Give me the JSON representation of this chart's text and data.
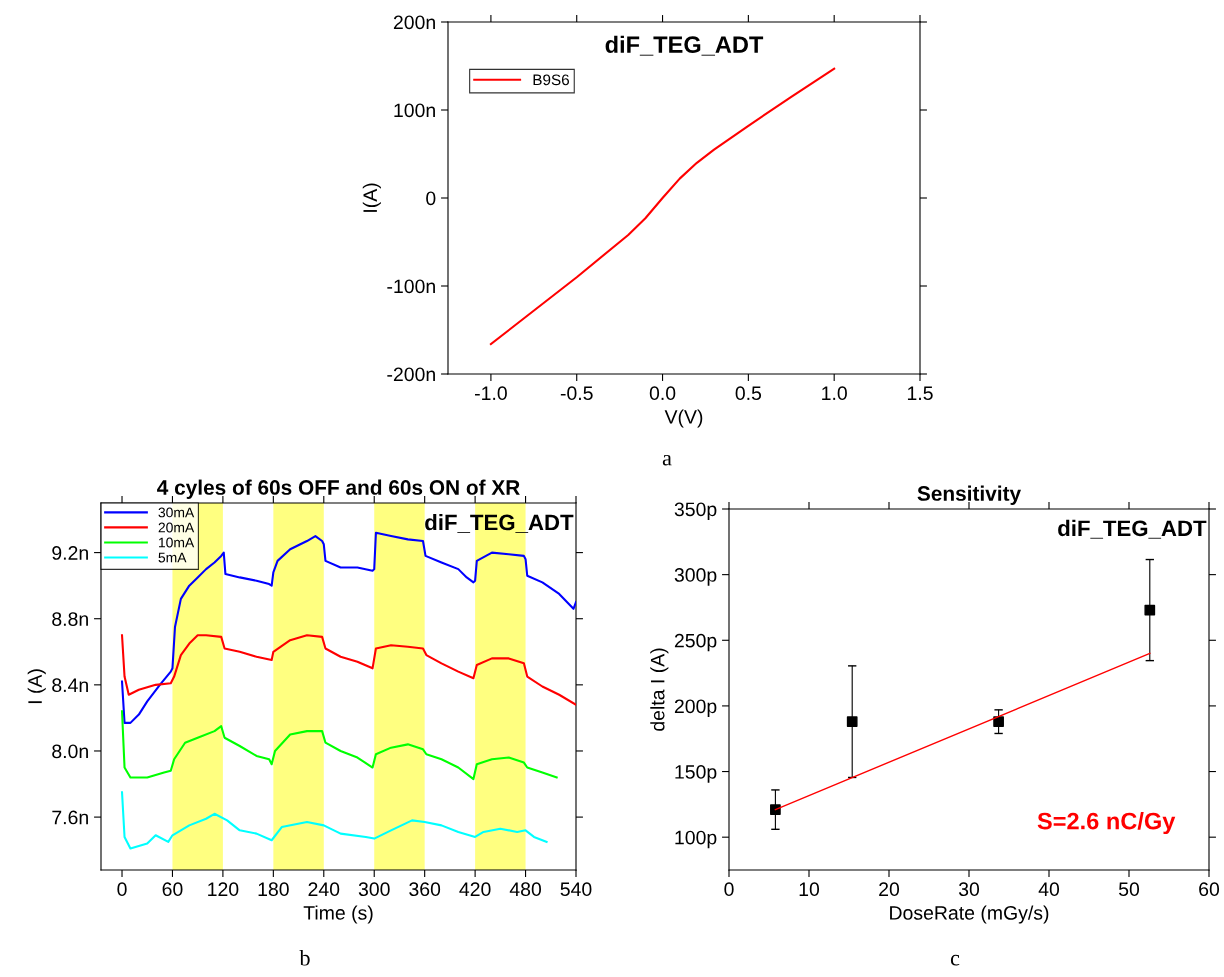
{
  "chart_data": [
    {
      "type": "line",
      "title": "diF_TEG_ADT",
      "xlabel": "V(V)",
      "ylabel": "I(A)",
      "annotations": [
        "a"
      ],
      "legend": "top left",
      "x": [
        -1.0,
        -0.5,
        -0.2,
        -0.1,
        0.0,
        0.1,
        0.2,
        0.3,
        0.5,
        0.75,
        1.0
      ],
      "series": [
        {
          "name": "B9S6",
          "color": "#ff0000",
          "values": [
            -166,
            -90,
            -42,
            -23,
            0,
            22,
            40,
            55,
            82,
            115,
            147
          ]
        }
      ],
      "xlim": [
        -1.25,
        1.5
      ],
      "xticks": [
        {
          "value": -1.0,
          "label": "-1.0"
        },
        {
          "value": -0.5,
          "label": "-0.5"
        },
        {
          "value": 0.0,
          "label": "0.0"
        },
        {
          "value": 0.5,
          "label": "0.5"
        },
        {
          "value": 1.0,
          "label": "1.0"
        },
        {
          "value": 1.5,
          "label": "1.5"
        }
      ],
      "ylim": [
        -200,
        200
      ],
      "yticks": [
        {
          "value": -200,
          "label": "-200n"
        },
        {
          "value": -100,
          "label": "-100n"
        },
        {
          "value": 0,
          "label": "0"
        },
        {
          "value": 100,
          "label": "100n"
        },
        {
          "value": 200,
          "label": "200n"
        }
      ]
    },
    {
      "type": "line",
      "title": "4 cyles of 60s OFF and 60s ON of XR",
      "subtitle": "diF_TEG_ADT",
      "xlabel": "Time (s)",
      "ylabel": "I (A)",
      "annotations": [
        "b"
      ],
      "legend": "top left",
      "series": [
        {
          "name": "30mA",
          "color": "#0000ff",
          "x": [
            0,
            3,
            10,
            20,
            30,
            45,
            58,
            60,
            63,
            70,
            80,
            90,
            100,
            110,
            118,
            121,
            123,
            140,
            160,
            175,
            178,
            180,
            185,
            200,
            220,
            230,
            238,
            240,
            242,
            260,
            280,
            298,
            300,
            302,
            320,
            340,
            358,
            361,
            380,
            400,
            410,
            418,
            420,
            422,
            440,
            460,
            478,
            480,
            482,
            500,
            520,
            537,
            540
          ],
          "values": [
            8.42,
            8.17,
            8.17,
            8.22,
            8.3,
            8.4,
            8.48,
            8.5,
            8.75,
            8.92,
            9.0,
            9.05,
            9.1,
            9.14,
            9.18,
            9.2,
            9.07,
            9.05,
            9.03,
            9.01,
            9.0,
            9.08,
            9.15,
            9.22,
            9.27,
            9.3,
            9.27,
            9.25,
            9.15,
            9.11,
            9.11,
            9.09,
            9.1,
            9.32,
            9.3,
            9.28,
            9.27,
            9.18,
            9.14,
            9.1,
            9.05,
            9.02,
            9.03,
            9.15,
            9.2,
            9.19,
            9.18,
            9.16,
            9.06,
            9.02,
            8.95,
            8.86,
            8.9
          ]
        },
        {
          "name": "20mA",
          "color": "#ff0000",
          "x": [
            0,
            3,
            8,
            20,
            40,
            58,
            62,
            70,
            80,
            90,
            100,
            118,
            122,
            140,
            160,
            178,
            180,
            200,
            220,
            238,
            242,
            260,
            280,
            298,
            302,
            320,
            340,
            358,
            362,
            380,
            400,
            418,
            422,
            440,
            460,
            478,
            482,
            500,
            520,
            540
          ],
          "values": [
            8.7,
            8.45,
            8.34,
            8.37,
            8.4,
            8.41,
            8.45,
            8.58,
            8.65,
            8.7,
            8.7,
            8.69,
            8.62,
            8.6,
            8.57,
            8.55,
            8.6,
            8.67,
            8.7,
            8.69,
            8.62,
            8.57,
            8.54,
            8.5,
            8.62,
            8.64,
            8.63,
            8.62,
            8.58,
            8.53,
            8.48,
            8.44,
            8.52,
            8.56,
            8.56,
            8.53,
            8.45,
            8.39,
            8.34,
            8.28
          ]
        },
        {
          "name": "10mA",
          "color": "#00ff00",
          "x": [
            0,
            3,
            10,
            30,
            50,
            58,
            62,
            75,
            90,
            110,
            118,
            122,
            140,
            160,
            175,
            178,
            182,
            200,
            220,
            238,
            242,
            260,
            280,
            298,
            302,
            320,
            340,
            358,
            362,
            380,
            400,
            418,
            422,
            440,
            460,
            478,
            482,
            500,
            517
          ],
          "values": [
            8.24,
            7.9,
            7.84,
            7.84,
            7.87,
            7.88,
            7.95,
            8.05,
            8.08,
            8.12,
            8.15,
            8.08,
            8.03,
            7.97,
            7.95,
            7.92,
            8.0,
            8.1,
            8.12,
            8.12,
            8.05,
            8.0,
            7.96,
            7.9,
            7.98,
            8.02,
            8.04,
            8.01,
            7.98,
            7.95,
            7.9,
            7.83,
            7.92,
            7.95,
            7.96,
            7.93,
            7.9,
            7.87,
            7.84
          ]
        },
        {
          "name": "5mA",
          "color": "#00ffff",
          "x": [
            0,
            3,
            10,
            30,
            40,
            55,
            60,
            80,
            100,
            110,
            125,
            140,
            160,
            178,
            190,
            220,
            240,
            260,
            290,
            300,
            320,
            345,
            360,
            380,
            400,
            420,
            430,
            450,
            470,
            480,
            490,
            505
          ],
          "values": [
            7.75,
            7.48,
            7.41,
            7.44,
            7.49,
            7.45,
            7.49,
            7.55,
            7.59,
            7.62,
            7.58,
            7.52,
            7.5,
            7.46,
            7.54,
            7.57,
            7.55,
            7.5,
            7.48,
            7.47,
            7.52,
            7.58,
            7.57,
            7.55,
            7.51,
            7.48,
            7.51,
            7.53,
            7.51,
            7.52,
            7.48,
            7.45
          ]
        }
      ],
      "bands": [
        {
          "axis": "x",
          "from": 60,
          "to": 120,
          "label": null,
          "color": "#ffff80"
        },
        {
          "axis": "x",
          "from": 180,
          "to": 240,
          "label": null,
          "color": "#ffff80"
        },
        {
          "axis": "x",
          "from": 300,
          "to": 360,
          "label": null,
          "color": "#ffff80"
        },
        {
          "axis": "x",
          "from": 420,
          "to": 480,
          "label": null,
          "color": "#ffff80"
        }
      ],
      "xlim": [
        -25,
        540
      ],
      "xticks": [
        0,
        60,
        120,
        180,
        240,
        300,
        360,
        420,
        480,
        540
      ],
      "ylim": [
        7.28,
        9.5
      ],
      "yticks": [
        {
          "value": 7.6,
          "label": "7.6n"
        },
        {
          "value": 8.0,
          "label": "8.0n"
        },
        {
          "value": 8.4,
          "label": "8.4n"
        },
        {
          "value": 8.8,
          "label": "8.8n"
        },
        {
          "value": 9.2,
          "label": "9.2n"
        }
      ]
    },
    {
      "type": "scatter",
      "title": "Sensitivity",
      "subtitle": "diF_TEG_ADT",
      "xlabel": "DoseRate (mGy/s)",
      "ylabel": "delta I (A)",
      "annotations": [
        "S=2.6 nC/Gy",
        "c"
      ],
      "series": [
        {
          "color": "#000000",
          "marker": "square",
          "x": [
            5.8,
            15.4,
            33.7,
            52.6
          ],
          "values": [
            121,
            188,
            188,
            273
          ],
          "errors": [
            15,
            42.5,
            9,
            38.5
          ]
        },
        {
          "type": "line",
          "color": "#ff0000",
          "x": [
            5.8,
            52.6
          ],
          "values": [
            121,
            240
          ]
        }
      ],
      "xlim": [
        0,
        60
      ],
      "xticks": [
        0,
        10,
        20,
        30,
        40,
        50,
        60
      ],
      "ylim": [
        75,
        350
      ],
      "yticks": [
        {
          "value": 100,
          "label": "100p"
        },
        {
          "value": 150,
          "label": "150p"
        },
        {
          "value": 200,
          "label": "200p"
        },
        {
          "value": 250,
          "label": "250p"
        },
        {
          "value": 300,
          "label": "300p"
        },
        {
          "value": 350,
          "label": "350p"
        }
      ]
    }
  ]
}
